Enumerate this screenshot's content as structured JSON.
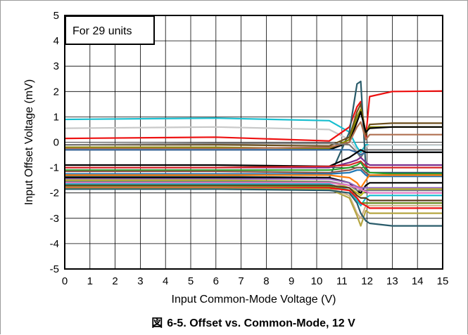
{
  "caption": {
    "fig": "図",
    "text": "6-5. Offset vs. Common-Mode, 12 V"
  },
  "chart_data": {
    "type": "line",
    "title": "",
    "xlabel": "Input Common-Mode Voltage (V)",
    "ylabel": "Input Offset Voltage (mV)",
    "xlim": [
      0,
      15
    ],
    "ylim": [
      -5,
      5
    ],
    "xticks": [
      "0",
      "1",
      "2",
      "3",
      "4",
      "5",
      "6",
      "7",
      "8",
      "9",
      "10",
      "11",
      "12",
      "13",
      "14",
      "15"
    ],
    "yticks": [
      "5",
      "4",
      "3",
      "2",
      "1",
      "0",
      "-1",
      "-2",
      "-3",
      "-4",
      "-5"
    ],
    "grid": true,
    "legend": "none",
    "annotation": "For 29 units",
    "x": [
      0,
      6,
      10.5,
      11.3,
      11.6,
      11.75,
      11.95,
      12.1,
      13,
      15
    ],
    "series": [
      {
        "color": "#17becf",
        "values": [
          0.9,
          0.95,
          0.85,
          0.4,
          -0.2,
          -0.4,
          -0.1,
          -0.1,
          -0.1,
          -0.1
        ]
      },
      {
        "color": "#c8c8c8",
        "values": [
          0.55,
          0.6,
          0.5,
          0.1,
          -0.3,
          -0.5,
          -0.2,
          -0.1,
          -0.1,
          -0.1
        ]
      },
      {
        "color": "#ee1111",
        "values": [
          0.15,
          0.2,
          0.05,
          0.6,
          1.4,
          1.6,
          0.2,
          1.8,
          2.0,
          2.02
        ]
      },
      {
        "color": "#2a5c6b",
        "values": [
          -1.35,
          -1.35,
          -1.4,
          0.4,
          2.3,
          2.4,
          -1.0,
          -1.2,
          -1.2,
          -1.2
        ]
      },
      {
        "color": "#6b4e1c",
        "values": [
          -0.1,
          -0.1,
          -0.15,
          0.2,
          1.2,
          1.5,
          0.3,
          0.7,
          0.75,
          0.75
        ]
      },
      {
        "color": "#888800",
        "values": [
          -0.2,
          -0.2,
          -0.25,
          0.1,
          1.0,
          1.3,
          0.4,
          0.6,
          0.6,
          0.6
        ]
      },
      {
        "color": "#000000",
        "values": [
          -0.3,
          -0.3,
          -0.3,
          0.0,
          0.8,
          1.2,
          0.4,
          0.55,
          0.6,
          0.6
        ]
      },
      {
        "color": "#b07050",
        "values": [
          -0.25,
          -0.25,
          -0.2,
          0.0,
          0.6,
          0.8,
          0.1,
          0.3,
          0.3,
          0.3
        ]
      },
      {
        "color": "#777777",
        "values": [
          -0.1,
          -0.05,
          -0.05,
          -0.1,
          -0.4,
          -0.6,
          -0.3,
          -0.3,
          -0.3,
          -0.3
        ]
      },
      {
        "color": "#3a6ea5",
        "values": [
          -0.3,
          -0.3,
          -0.3,
          -0.3,
          -0.4,
          -0.5,
          -0.4,
          -0.4,
          -0.4,
          -0.4
        ]
      },
      {
        "color": "#000000",
        "values": [
          -0.9,
          -0.9,
          -0.95,
          -0.6,
          -0.4,
          -0.3,
          -0.4,
          -0.4,
          -0.4,
          -0.4
        ]
      },
      {
        "color": "#7a2e8e",
        "values": [
          -1.0,
          -1.0,
          -1.0,
          -0.8,
          -0.7,
          -0.6,
          -0.8,
          -0.9,
          -0.9,
          -0.9
        ]
      },
      {
        "color": "#d62728",
        "values": [
          -1.0,
          -1.0,
          -0.95,
          -0.9,
          -0.8,
          -0.75,
          -0.95,
          -1.0,
          -1.0,
          -1.0
        ]
      },
      {
        "color": "#2ca02c",
        "values": [
          -1.1,
          -1.1,
          -1.1,
          -1.0,
          -0.9,
          -0.8,
          -1.1,
          -1.2,
          -1.25,
          -1.25
        ]
      },
      {
        "color": "#8c564b",
        "values": [
          -1.15,
          -1.15,
          -1.2,
          -1.1,
          -1.0,
          -1.0,
          -1.2,
          -1.3,
          -1.3,
          -1.3
        ]
      },
      {
        "color": "#1f77b4",
        "values": [
          -1.25,
          -1.25,
          -1.25,
          -1.2,
          -1.1,
          -1.1,
          -1.3,
          -1.35,
          -1.35,
          -1.35
        ]
      },
      {
        "color": "#ff7f0e",
        "values": [
          -1.3,
          -1.3,
          -1.3,
          -1.4,
          -1.6,
          -1.8,
          -1.5,
          -1.3,
          -1.3,
          -1.3
        ]
      },
      {
        "color": "#000000",
        "values": [
          -1.4,
          -1.4,
          -1.4,
          -1.6,
          -1.9,
          -2.0,
          -1.7,
          -1.6,
          -1.6,
          -1.6
        ]
      },
      {
        "color": "#9467bd",
        "values": [
          -1.45,
          -1.45,
          -1.45,
          -1.6,
          -1.75,
          -1.8,
          -1.8,
          -1.8,
          -1.8,
          -1.8
        ]
      },
      {
        "color": "#bcbd22",
        "values": [
          -1.5,
          -1.5,
          -1.55,
          -1.8,
          -2.0,
          -2.1,
          -1.9,
          -1.85,
          -1.85,
          -1.85
        ]
      },
      {
        "color": "#7f7f7f",
        "values": [
          -1.55,
          -1.55,
          -1.55,
          -1.7,
          -1.9,
          -1.9,
          -1.9,
          -1.9,
          -1.9,
          -1.9
        ]
      },
      {
        "color": "#e377c2",
        "values": [
          -1.6,
          -1.6,
          -1.6,
          -1.7,
          -1.8,
          -1.85,
          -1.95,
          -2.0,
          -2.0,
          -2.0
        ]
      },
      {
        "color": "#17becf",
        "values": [
          -1.65,
          -1.65,
          -1.65,
          -1.9,
          -2.3,
          -2.5,
          -2.2,
          -2.1,
          -2.1,
          -2.1
        ]
      },
      {
        "color": "#5c3a1e",
        "values": [
          -1.7,
          -1.7,
          -1.7,
          -1.8,
          -2.1,
          -2.2,
          -2.2,
          -2.3,
          -2.3,
          -2.3
        ]
      },
      {
        "color": "#6b8e23",
        "values": [
          -1.75,
          -1.75,
          -1.75,
          -1.9,
          -2.2,
          -2.4,
          -2.4,
          -2.4,
          -2.4,
          -2.4
        ]
      },
      {
        "color": "#d2b48c",
        "values": [
          -1.78,
          -1.78,
          -1.8,
          -2.1,
          -2.8,
          -3.0,
          -2.5,
          -2.5,
          -2.5,
          -2.5
        ]
      },
      {
        "color": "#ee1111",
        "values": [
          -1.8,
          -1.8,
          -1.8,
          -1.9,
          -2.2,
          -2.4,
          -2.5,
          -2.6,
          -2.6,
          -2.6
        ]
      },
      {
        "color": "#b5a642",
        "values": [
          -1.82,
          -1.82,
          -1.85,
          -2.2,
          -2.9,
          -3.3,
          -2.7,
          -2.8,
          -2.8,
          -2.8
        ]
      },
      {
        "color": "#2a5c6b",
        "values": [
          -1.85,
          -1.85,
          -1.9,
          -2.0,
          -2.4,
          -2.8,
          -3.1,
          -3.2,
          -3.3,
          -3.3
        ]
      }
    ]
  }
}
